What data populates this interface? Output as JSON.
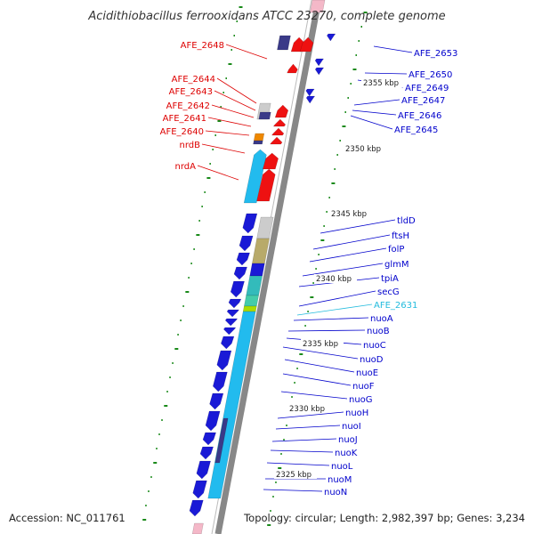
{
  "title": "Acidithiobacillus ferrooxidans ATCC 23270, complete genome",
  "footer": {
    "accession": "Accession: NC_011761",
    "topology": "Topology: circular; Length: 2,982,397 bp; Genes: 3,234"
  },
  "colors": {
    "left_label": "#dd0000",
    "right_label": "#0000cc",
    "highlight_label": "#22bbdd",
    "backbone": "#888888",
    "tick": "#1a8a1a",
    "gene_red": "#ee1111",
    "gene_blue": "#1a1ad6",
    "gene_cyan": "#22bbee",
    "gene_navy": "#3a3a88",
    "gene_olive": "#b8aa6a",
    "gene_teal": "#33bbbb",
    "gene_gray": "#cccccc"
  },
  "scale_labels": [
    "2355 kbp",
    "2350 kbp",
    "2345 kbp",
    "2340 kbp",
    "2335 kbp",
    "2330 kbp",
    "2325 kbp"
  ],
  "left_labels": [
    "AFE_2648",
    "AFE_2644",
    "AFE_2643",
    "AFE_2642",
    "AFE_2641",
    "AFE_2640",
    "nrdB",
    "nrdA"
  ],
  "right_labels": [
    "AFE_2653",
    "AFE_2650",
    "AFE_2649",
    "AFE_2647",
    "AFE_2646",
    "AFE_2645",
    "tldD",
    "ftsH",
    "folP",
    "glmM",
    "tpiA",
    "secG",
    "AFE_2631",
    "nuoA",
    "nuoB",
    "nuoC",
    "nuoD",
    "nuoE",
    "nuoF",
    "nuoG",
    "nuoH",
    "nuoI",
    "nuoJ",
    "nuoK",
    "nuoL",
    "nuoM",
    "nuoN"
  ],
  "highlighted_label": "AFE_2631"
}
